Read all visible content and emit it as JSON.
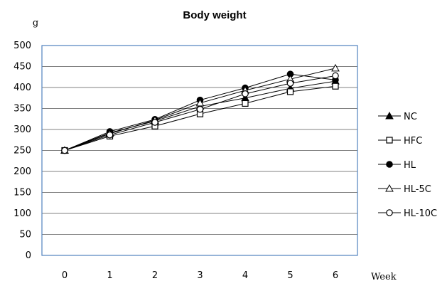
{
  "chart_data": {
    "type": "line",
    "title": "Body weight",
    "ylabel": "g",
    "xlabel": "Week",
    "x": [
      0,
      1,
      2,
      3,
      4,
      5,
      6
    ],
    "ylim": [
      0,
      500
    ],
    "yticks": [
      0,
      50,
      100,
      150,
      200,
      250,
      300,
      350,
      400,
      450,
      500
    ],
    "grid": true,
    "legend_position": "right",
    "colors": {
      "plot_border": "#4f81bd",
      "gridline": "#808080",
      "series": "#000000"
    },
    "series": [
      {
        "name": "NC",
        "marker": "filled-triangle",
        "values": [
          250,
          292,
          320,
          355,
          375,
          398,
          415
        ]
      },
      {
        "name": "HFC",
        "marker": "open-square",
        "values": [
          250,
          284,
          308,
          337,
          362,
          390,
          403
        ]
      },
      {
        "name": "HL",
        "marker": "filled-circle",
        "values": [
          250,
          295,
          324,
          370,
          399,
          432,
          418
        ]
      },
      {
        "name": "HL-5C",
        "marker": "open-triangle",
        "values": [
          250,
          290,
          322,
          363,
          393,
          420,
          446
        ]
      },
      {
        "name": "HL-10C",
        "marker": "open-circle",
        "values": [
          250,
          287,
          317,
          348,
          385,
          410,
          428
        ]
      }
    ]
  }
}
